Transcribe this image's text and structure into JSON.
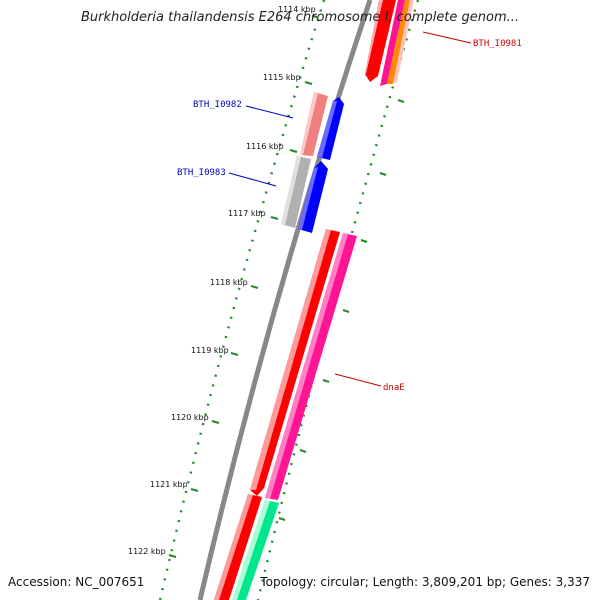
{
  "title": "Burkholderia thailandensis E264 chromosome I, complete genom...",
  "footer": {
    "accession": "Accession: NC_007651",
    "summary": "Topology: circular; Length: 3,809,201 bp; Genes: 3,337"
  },
  "ticks": [
    "1114 kbp",
    "1115 kbp",
    "1116 kbp",
    "1117 kbp",
    "1118 kbp",
    "1119 kbp",
    "1120 kbp",
    "1121 kbp",
    "1122 kbp"
  ],
  "gene_labels": [
    {
      "text": "BTH_I0981",
      "color": "#cc0000"
    },
    {
      "text": "BTH_I0982",
      "color": "#0000cc"
    },
    {
      "text": "BTH_I0983",
      "color": "#0000cc"
    },
    {
      "text": "dnaE",
      "color": "#cc0000"
    }
  ],
  "colors": {
    "backbone": "#808080",
    "tick": "#228b22",
    "cds_forward": "#0000ff",
    "cds_reverse": "#ff0000",
    "gene_pink": "#f08080",
    "gene_gray": "#b0b0b0",
    "gene_magenta": "#ff1493",
    "gene_green": "#00e68a",
    "gene_orange": "#ff8c00"
  }
}
